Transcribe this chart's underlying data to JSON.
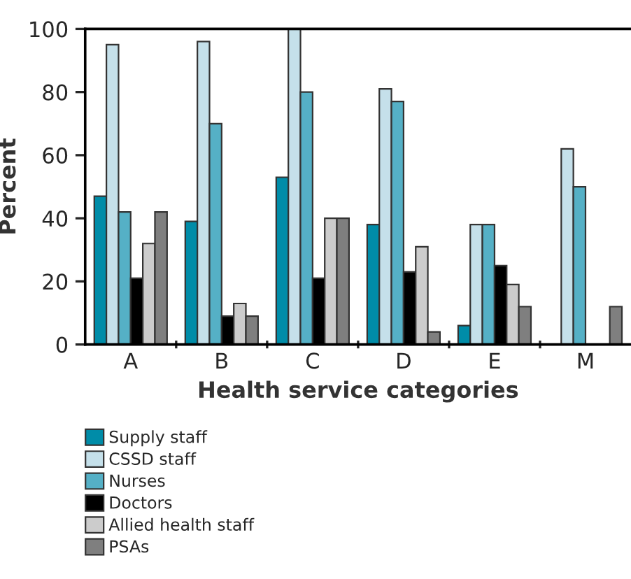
{
  "chart_data": {
    "type": "bar",
    "xlabel": "Health service categories",
    "ylabel": "Percent",
    "categories": [
      "A",
      "B",
      "C",
      "D",
      "E",
      "M"
    ],
    "series": [
      {
        "name": "Supply staff",
        "color": "#008ca8",
        "values": [
          47,
          39,
          53,
          38,
          6,
          null
        ]
      },
      {
        "name": "CSSD staff",
        "color": "#c5e0ea",
        "values": [
          95,
          96,
          100,
          81,
          38,
          62
        ]
      },
      {
        "name": "Nurses",
        "color": "#55b0c6",
        "values": [
          42,
          70,
          80,
          77,
          38,
          50
        ]
      },
      {
        "name": "Doctors",
        "color": "#000000",
        "values": [
          21,
          9,
          21,
          23,
          25,
          null
        ]
      },
      {
        "name": "Allied health staff",
        "color": "#cccccc",
        "values": [
          32,
          13,
          40,
          31,
          19,
          null
        ]
      },
      {
        "name": "PSAs",
        "color": "#7f7f7f",
        "values": [
          42,
          9,
          40,
          4,
          12,
          12
        ]
      }
    ],
    "ylim": [
      0,
      100
    ],
    "yticks": [
      0,
      20,
      40,
      60,
      80,
      100
    ],
    "grid": false,
    "legend": "bottom left"
  }
}
